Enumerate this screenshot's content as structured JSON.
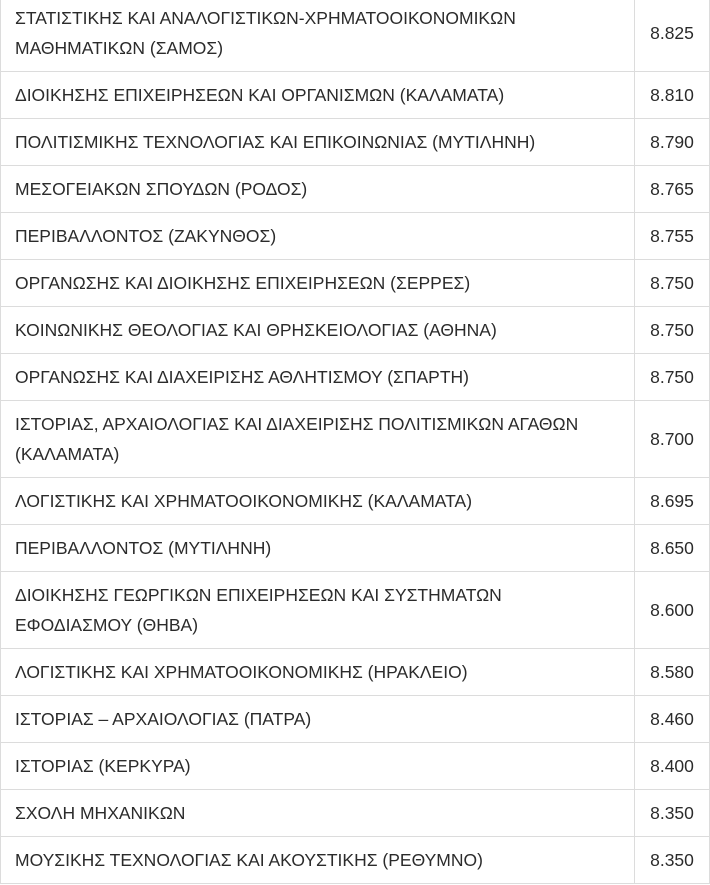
{
  "table": {
    "rows": [
      [
        "ΣΤΑΤΙΣΤΙΚΗΣ ΚΑΙ ΑΝΑΛΟΓΙΣΤΙΚΩΝ-ΧΡΗΜΑΤΟΟΙΚΟΝΟΜΙΚΩΝ ΜΑΘΗΜΑΤΙΚΩΝ (ΣΑΜΟΣ)",
        "8.825"
      ],
      [
        "ΔΙΟΙΚΗΣΗΣ ΕΠΙΧΕΙΡΗΣΕΩΝ ΚΑΙ ΟΡΓΑΝΙΣΜΩΝ (ΚΑΛΑΜΑΤΑ)",
        "8.810"
      ],
      [
        "ΠΟΛΙΤΙΣΜΙΚΗΣ ΤΕΧΝΟΛΟΓΙΑΣ ΚΑΙ ΕΠΙΚΟΙΝΩΝΙΑΣ (ΜΥΤΙΛΗΝΗ)",
        "8.790"
      ],
      [
        "ΜΕΣΟΓΕΙΑΚΩΝ ΣΠΟΥΔΩΝ (ΡΟΔΟΣ)",
        "8.765"
      ],
      [
        "ΠΕΡΙΒΑΛΛΟΝΤΟΣ (ΖΑΚΥΝΘΟΣ)",
        "8.755"
      ],
      [
        "ΟΡΓΑΝΩΣΗΣ ΚΑΙ ΔΙΟΙΚΗΣΗΣ ΕΠΙΧΕΙΡΗΣΕΩΝ (ΣΕΡΡΕΣ)",
        "8.750"
      ],
      [
        "ΚΟΙΝΩΝΙΚΗΣ ΘΕΟΛΟΓΙΑΣ ΚΑΙ ΘΡΗΣΚΕΙΟΛΟΓΙΑΣ (ΑΘΗΝΑ)",
        "8.750"
      ],
      [
        "ΟΡΓΑΝΩΣΗΣ ΚΑΙ ΔΙΑΧΕΙΡΙΣΗΣ ΑΘΛΗΤΙΣΜΟΥ (ΣΠΑΡΤΗ)",
        "8.750"
      ],
      [
        "ΙΣΤΟΡΙΑΣ, ΑΡΧΑΙΟΛΟΓΙΑΣ ΚΑΙ ΔΙΑΧΕΙΡΙΣΗΣ ΠΟΛΙΤΙΣΜΙΚΩΝ ΑΓΑΘΩΝ (ΚΑΛΑΜΑΤΑ)",
        "8.700"
      ],
      [
        "ΛΟΓΙΣΤΙΚΗΣ ΚΑΙ ΧΡΗΜΑΤΟΟΙΚΟΝΟΜΙΚΗΣ (ΚΑΛΑΜΑΤΑ)",
        "8.695"
      ],
      [
        "ΠΕΡΙΒΑΛΛΟΝΤΟΣ (ΜΥΤΙΛΗΝΗ)",
        "8.650"
      ],
      [
        "ΔΙΟΙΚΗΣΗΣ ΓΕΩΡΓΙΚΩΝ ΕΠΙΧΕΙΡΗΣΕΩΝ ΚΑΙ ΣΥΣΤΗΜΑΤΩΝ ΕΦΟΔΙΑΣΜΟΥ (ΘΗΒΑ)",
        "8.600"
      ],
      [
        "ΛΟΓΙΣΤΙΚΗΣ ΚΑΙ ΧΡΗΜΑΤΟΟΙΚΟΝΟΜΙΚΗΣ (ΗΡΑΚΛΕΙΟ)",
        "8.580"
      ],
      [
        "ΙΣΤΟΡΙΑΣ – ΑΡΧΑΙΟΛΟΓΙΑΣ (ΠΑΤΡΑ)",
        "8.460"
      ],
      [
        "ΙΣΤΟΡΙΑΣ (ΚΕΡΚΥΡΑ)",
        "8.400"
      ],
      [
        "ΣΧΟΛΗ ΜΗΧΑΝΙΚΩΝ",
        "8.350"
      ],
      [
        "ΜΟΥΣΙΚΗΣ ΤΕΧΝΟΛΟΓΙΑΣ ΚΑΙ ΑΚΟΥΣΤΙΚΗΣ (ΡΕΘΥΜΝΟ)",
        "8.350"
      ]
    ]
  }
}
